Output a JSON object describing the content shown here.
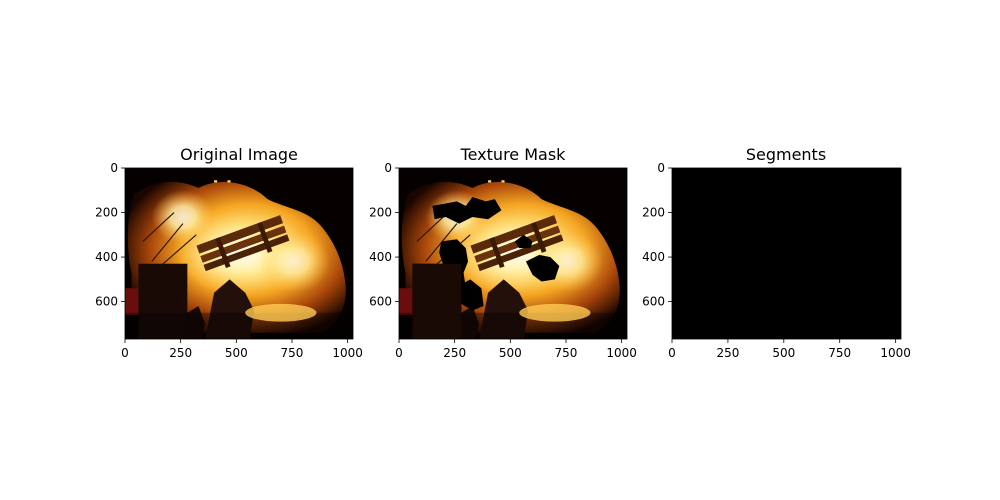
{
  "chart_data": [
    {
      "type": "image",
      "title": "Original Image",
      "content": "photo of a burning bench in a bonfire at night",
      "xlim": [
        0,
        1024
      ],
      "ylim": [
        768,
        0
      ],
      "xticks": [
        0,
        250,
        500,
        750,
        1000
      ],
      "yticks": [
        0,
        200,
        400,
        600
      ]
    },
    {
      "type": "image",
      "title": "Texture Mask",
      "content": "same photo with several irregular regions masked out in black",
      "xlim": [
        0,
        1024
      ],
      "ylim": [
        768,
        0
      ],
      "xticks": [
        0,
        250,
        500,
        750,
        1000
      ],
      "yticks": [
        0,
        200,
        400,
        600
      ]
    },
    {
      "type": "image",
      "title": "Segments",
      "content": "uniform black image",
      "fill_color": "#000000",
      "xlim": [
        0,
        1024
      ],
      "ylim": [
        768,
        0
      ],
      "xticks": [
        0,
        250,
        500,
        750,
        1000
      ],
      "yticks": [
        0,
        200,
        400,
        600
      ]
    }
  ]
}
